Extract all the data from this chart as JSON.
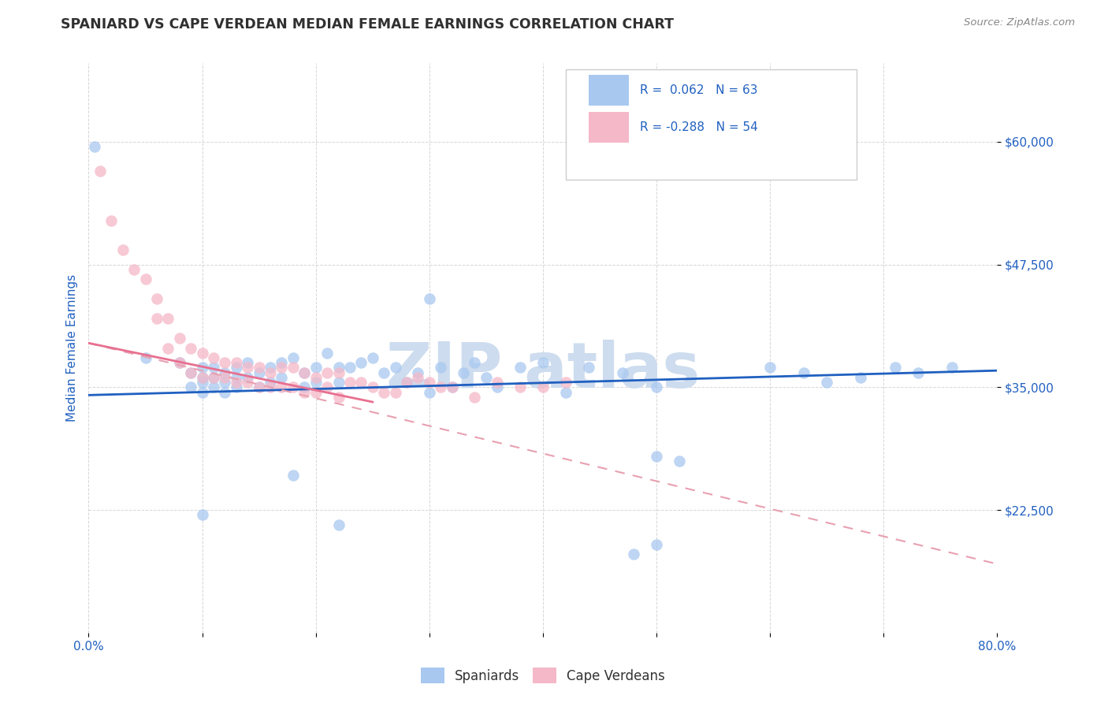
{
  "title": "SPANIARD VS CAPE VERDEAN MEDIAN FEMALE EARNINGS CORRELATION CHART",
  "source_text": "Source: ZipAtlas.com",
  "ylabel": "Median Female Earnings",
  "xlim": [
    0.0,
    0.8
  ],
  "ylim": [
    10000,
    68000
  ],
  "yticks": [
    22500,
    35000,
    47500,
    60000
  ],
  "ytick_labels": [
    "$22,500",
    "$35,000",
    "$47,500",
    "$60,000"
  ],
  "xticks": [
    0.0,
    0.1,
    0.2,
    0.3,
    0.4,
    0.5,
    0.6,
    0.7,
    0.8
  ],
  "xtick_labels": [
    "0.0%",
    "",
    "",
    "",
    "",
    "",
    "",
    "",
    "80.0%"
  ],
  "R_spaniard": 0.062,
  "N_spaniard": 63,
  "R_capeverdean": -0.288,
  "N_capeverdean": 54,
  "color_spaniard": "#a8c8f0",
  "color_capeverdean": "#f5b8c8",
  "trend_spaniard_color": "#2060c0",
  "trend_capeverdean_color": "#e87090",
  "trend_capeverdean_dash_color": "#e8a0b0",
  "title_color": "#303030",
  "axis_label_color": "#2060c0",
  "tick_label_color": "#2060c0",
  "watermark_color": "#cddcee",
  "background_color": "#ffffff",
  "spaniard_x": [
    0.005,
    0.05,
    0.08,
    0.09,
    0.09,
    0.1,
    0.1,
    0.1,
    0.1,
    0.11,
    0.11,
    0.11,
    0.12,
    0.12,
    0.12,
    0.13,
    0.13,
    0.13,
    0.14,
    0.14,
    0.15,
    0.15,
    0.16,
    0.16,
    0.17,
    0.17,
    0.18,
    0.19,
    0.19,
    0.2,
    0.2,
    0.21,
    0.22,
    0.22,
    0.23,
    0.24,
    0.25,
    0.26,
    0.27,
    0.28,
    0.29,
    0.3,
    0.31,
    0.32,
    0.33,
    0.34,
    0.35,
    0.36,
    0.38,
    0.4,
    0.42,
    0.44,
    0.47,
    0.5,
    0.52,
    0.6,
    0.63,
    0.65,
    0.68,
    0.71,
    0.73,
    0.76,
    0.5
  ],
  "spaniard_y": [
    59500,
    38000,
    37500,
    36500,
    35000,
    37000,
    36000,
    35500,
    34500,
    37000,
    36000,
    35000,
    36500,
    35500,
    34500,
    37000,
    36000,
    35000,
    37500,
    36000,
    36500,
    35000,
    37000,
    35500,
    37500,
    36000,
    38000,
    36500,
    35000,
    37000,
    35500,
    38500,
    37000,
    35500,
    37000,
    37500,
    38000,
    36500,
    37000,
    35500,
    36500,
    34500,
    37000,
    35000,
    36500,
    37500,
    36000,
    35000,
    37000,
    37500,
    34500,
    37000,
    36500,
    35000,
    27500,
    37000,
    36500,
    35500,
    36000,
    37000,
    36500,
    37000,
    28000
  ],
  "spaniard_x2": [
    0.1,
    0.18,
    0.22,
    0.3,
    0.48,
    0.5
  ],
  "spaniard_y2": [
    22000,
    26000,
    21000,
    44000,
    18000,
    19000
  ],
  "capeverdean_x": [
    0.01,
    0.02,
    0.03,
    0.04,
    0.05,
    0.06,
    0.06,
    0.07,
    0.07,
    0.08,
    0.08,
    0.09,
    0.09,
    0.1,
    0.1,
    0.11,
    0.11,
    0.12,
    0.12,
    0.13,
    0.13,
    0.14,
    0.14,
    0.15,
    0.15,
    0.16,
    0.16,
    0.17,
    0.17,
    0.18,
    0.18,
    0.19,
    0.19,
    0.2,
    0.2,
    0.21,
    0.21,
    0.22,
    0.22,
    0.23,
    0.24,
    0.25,
    0.26,
    0.27,
    0.28,
    0.29,
    0.3,
    0.31,
    0.32,
    0.34,
    0.36,
    0.38,
    0.4,
    0.42
  ],
  "capeverdean_y": [
    57000,
    52000,
    49000,
    47000,
    46000,
    44000,
    42000,
    42000,
    39000,
    40000,
    37500,
    39000,
    36500,
    38500,
    36000,
    38000,
    36000,
    37500,
    36000,
    37500,
    35500,
    37000,
    35500,
    37000,
    35000,
    36500,
    35000,
    37000,
    35000,
    37000,
    35000,
    36500,
    34500,
    36000,
    34500,
    36500,
    35000,
    36500,
    34000,
    35500,
    35500,
    35000,
    34500,
    34500,
    35500,
    36000,
    35500,
    35000,
    35000,
    34000,
    35500,
    35000,
    35000,
    35500
  ],
  "spaniard_trend_x0": 0.0,
  "spaniard_trend_y0": 34200,
  "spaniard_trend_x1": 0.8,
  "spaniard_trend_y1": 36700,
  "capeverdean_trend_x0": 0.0,
  "capeverdean_trend_y0": 39500,
  "capeverdean_trend_x1": 0.8,
  "capeverdean_trend_y1": 17000
}
